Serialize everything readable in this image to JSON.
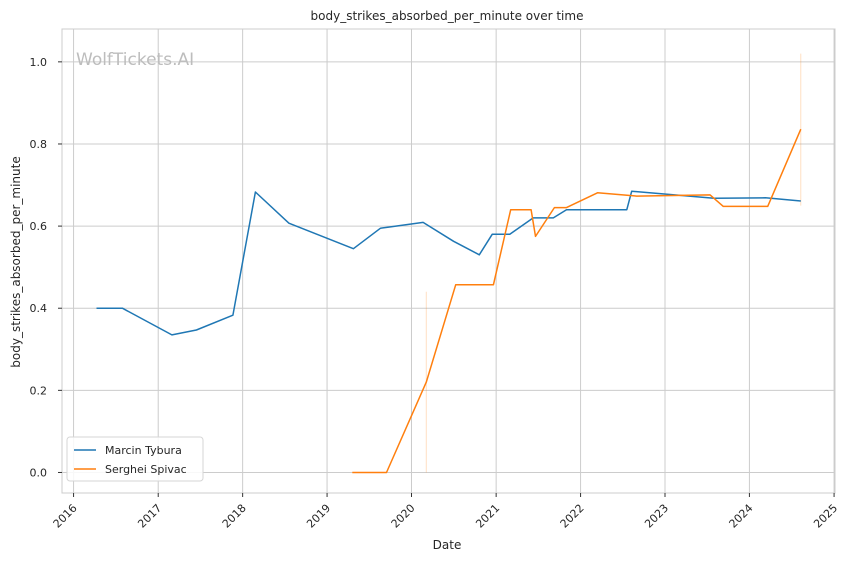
{
  "chart_data": {
    "type": "line",
    "title": "body_strikes_absorbed_per_minute over time",
    "xlabel": "Date",
    "ylabel": "body_strikes_absorbed_per_minute",
    "watermark": "WolfTickets.AI",
    "x_ticks": [
      "2016",
      "2017",
      "2018",
      "2019",
      "2020",
      "2021",
      "2022",
      "2023",
      "2024",
      "2025"
    ],
    "y_ticks": [
      "0.0",
      "0.2",
      "0.4",
      "0.6",
      "0.8",
      "1.0"
    ],
    "xlim": [
      "2015-11-12",
      "2025-01-05"
    ],
    "ylim": [
      -0.05,
      1.08
    ],
    "grid": true,
    "legend_position": "lower-left",
    "series": [
      {
        "name": "Marcin Tybura",
        "color": "#1f77b4",
        "points": [
          [
            "2016-04-09",
            0.4
          ],
          [
            "2016-07-30",
            0.4
          ],
          [
            "2017-03-01",
            0.335
          ],
          [
            "2017-06-15",
            0.347
          ],
          [
            "2017-11-20",
            0.383
          ],
          [
            "2018-02-25",
            0.683
          ],
          [
            "2018-07-20",
            0.607
          ],
          [
            "2019-04-25",
            0.545
          ],
          [
            "2019-08-20",
            0.595
          ],
          [
            "2019-09-20",
            0.597
          ],
          [
            "2020-02-20",
            0.609
          ],
          [
            "2020-07-01",
            0.563
          ],
          [
            "2020-07-25",
            0.556
          ],
          [
            "2020-10-20",
            0.53
          ],
          [
            "2020-12-15",
            0.58
          ],
          [
            "2021-03-01",
            0.58
          ],
          [
            "2021-06-10",
            0.62
          ],
          [
            "2021-09-05",
            0.62
          ],
          [
            "2021-11-01",
            0.64
          ],
          [
            "2022-07-20",
            0.64
          ],
          [
            "2022-08-10",
            0.685
          ],
          [
            "2023-08-01",
            0.668
          ],
          [
            "2024-03-10",
            0.669
          ],
          [
            "2024-08-10",
            0.661
          ]
        ]
      },
      {
        "name": "Serghei Spivac",
        "color": "#ff7f0e",
        "points": [
          [
            "2019-04-20",
            0.0
          ],
          [
            "2019-09-15",
            0.0
          ],
          [
            "2020-03-05",
            0.22
          ],
          [
            "2020-07-10",
            0.457
          ],
          [
            "2020-12-20",
            0.457
          ],
          [
            "2021-03-05",
            0.64
          ],
          [
            "2021-06-01",
            0.64
          ],
          [
            "2021-06-20",
            0.575
          ],
          [
            "2021-09-10",
            0.645
          ],
          [
            "2021-11-01",
            0.645
          ],
          [
            "2022-03-15",
            0.681
          ],
          [
            "2022-09-01",
            0.673
          ],
          [
            "2023-07-15",
            0.676
          ],
          [
            "2023-09-10",
            0.648
          ],
          [
            "2024-03-20",
            0.648
          ],
          [
            "2024-08-10",
            0.836
          ]
        ]
      }
    ],
    "error_bars": [
      {
        "series": "Serghei Spivac",
        "x": "2020-03-05",
        "low": 0.0,
        "high": 0.44
      },
      {
        "series": "Serghei Spivac",
        "x": "2024-08-10",
        "low": 0.65,
        "high": 1.02
      }
    ]
  }
}
